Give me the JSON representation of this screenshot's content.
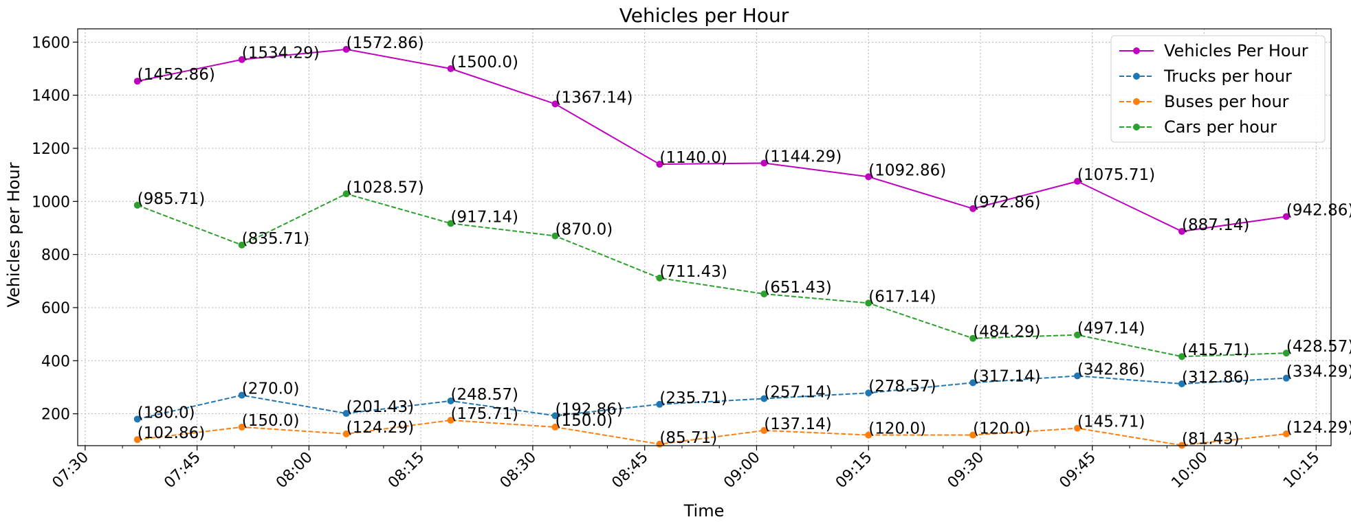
{
  "chart_data": {
    "type": "line",
    "title": "Vehicles per Hour",
    "xlabel": "Time",
    "ylabel": "Vehicles per Hour",
    "x": [
      "07:37",
      "07:51",
      "08:05",
      "08:19",
      "08:33",
      "08:47",
      "09:01",
      "09:15",
      "09:29",
      "09:43",
      "09:57",
      "10:11"
    ],
    "xlim": [
      "07:29",
      "10:17"
    ],
    "xticks": [
      "07:30",
      "07:45",
      "08:00",
      "08:15",
      "08:30",
      "08:45",
      "09:00",
      "09:15",
      "09:30",
      "09:45",
      "10:00",
      "10:15"
    ],
    "ylim": [
      80,
      1650
    ],
    "yticks": [
      200,
      400,
      600,
      800,
      1000,
      1200,
      1400,
      1600
    ],
    "grid": true,
    "legend_position": "top-right",
    "series": [
      {
        "name": "Vehicles Per Hour",
        "color": "#bf00bf",
        "style": "solid",
        "values": [
          1452.86,
          1534.29,
          1572.86,
          1500.0,
          1367.14,
          1140.0,
          1144.29,
          1092.86,
          972.86,
          1075.71,
          887.14,
          942.86
        ],
        "labels": [
          "(1452.86)",
          "(1534.29)",
          "(1572.86)",
          "(1500.0)",
          "(1367.14)",
          "(1140.0)",
          "(1144.29)",
          "(1092.86)",
          "(972.86)",
          "(1075.71)",
          "(887.14)",
          "(942.86)"
        ]
      },
      {
        "name": "Trucks per hour",
        "color": "#1f77b4",
        "style": "dashed",
        "values": [
          180.0,
          270.0,
          201.43,
          248.57,
          192.86,
          235.71,
          257.14,
          278.57,
          317.14,
          342.86,
          312.86,
          334.29
        ],
        "labels": [
          "(180.0)",
          "(270.0)",
          "(201.43)",
          "(248.57)",
          "(192.86)",
          "(235.71)",
          "(257.14)",
          "(278.57)",
          "(317.14)",
          "(342.86)",
          "(312.86)",
          "(334.29)"
        ]
      },
      {
        "name": "Buses per hour",
        "color": "#ff7f0e",
        "style": "dashed",
        "values": [
          102.86,
          150.0,
          124.29,
          175.71,
          150.0,
          85.71,
          137.14,
          120.0,
          120.0,
          145.71,
          81.43,
          124.29
        ],
        "labels": [
          "(102.86)",
          "(150.0)",
          "(124.29)",
          "(175.71)",
          "(150.0)",
          "(85.71)",
          "(137.14)",
          "(120.0)",
          "(120.0)",
          "(145.71)",
          "(81.43)",
          "(124.29)"
        ]
      },
      {
        "name": "Cars per hour",
        "color": "#2ca02c",
        "style": "dashed",
        "values": [
          985.71,
          835.71,
          1028.57,
          917.14,
          870.0,
          711.43,
          651.43,
          617.14,
          484.29,
          497.14,
          415.71,
          428.57
        ],
        "labels": [
          "(985.71)",
          "(835.71)",
          "(1028.57)",
          "(917.14)",
          "(870.0)",
          "(711.43)",
          "(651.43)",
          "(617.14)",
          "(484.29)",
          "(497.14)",
          "(415.71)",
          "(428.57)"
        ]
      }
    ]
  }
}
